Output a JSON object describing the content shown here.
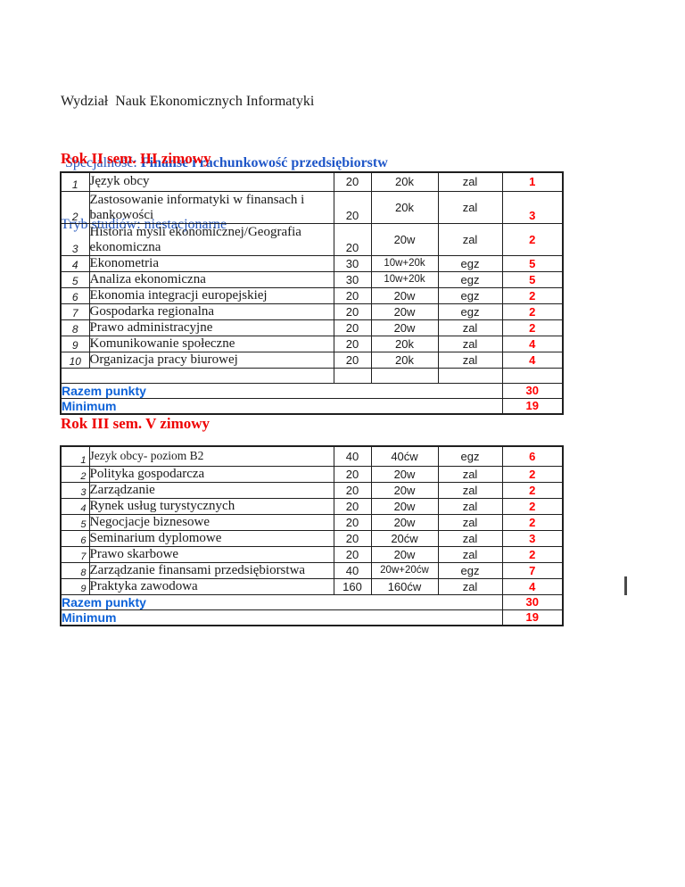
{
  "header": {
    "line1": "Wydział  Nauk Ekonomicznych Informatyki",
    "line2_label": "Specjalność: ",
    "line2_value": "Finanse i rachunkowość przedsiębiorstw",
    "line3": "Tryb studiów: niestacjonarne"
  },
  "colors": {
    "heading_red": "#ee0000",
    "points_red": "#ff0000",
    "serif_blue": "#2457bd",
    "summary_blue": "#0d62d8",
    "border_black": "#1f1f1f",
    "page_bg": "#ffffff"
  },
  "sections": [
    {
      "heading": "Rok II sem. III zimowy",
      "rows": [
        {
          "no": "1",
          "course": "Język obcy",
          "hours": "20",
          "type": "20k",
          "exam": "zal",
          "points": "1"
        },
        {
          "no": "2",
          "course": "Zastosowanie informatyki w  finansach i\nbankowości",
          "hours": "20",
          "type": "20k",
          "exam": "zal",
          "points": "3",
          "tall": true,
          "points_bottom": true
        },
        {
          "no": "3",
          "course": "Historia mysli ekonomicznej/Geografia\nekonomiczna",
          "hours": "20",
          "type": "20w",
          "exam": "zal",
          "points": "2",
          "tall": true
        },
        {
          "no": "4",
          "course": "Ekonometria",
          "hours": "30",
          "type": "10w+20k",
          "exam": "egz",
          "points": "5"
        },
        {
          "no": "5",
          "course": "Analiza ekonomiczna",
          "hours": "30",
          "type": "10w+20k",
          "exam": "egz",
          "points": "5"
        },
        {
          "no": "6",
          "course": "Ekonomia integracji europejskiej",
          "hours": "20",
          "type": "20w",
          "exam": "egz",
          "points": "2"
        },
        {
          "no": "7",
          "course": "Gospodarka regionalna",
          "hours": "20",
          "type": "20w",
          "exam": "egz",
          "points": "2"
        },
        {
          "no": "8",
          "course": "Prawo administracyjne",
          "hours": "20",
          "type": "20w",
          "exam": "zal",
          "points": "2"
        },
        {
          "no": "9",
          "course": "Komunikowanie społeczne",
          "hours": "20",
          "type": "20k",
          "exam": "zal",
          "points": "4"
        },
        {
          "no": "10",
          "course": "Organizacja pracy biurowej",
          "hours": "20",
          "type": "20k",
          "exam": "zal",
          "points": "4"
        },
        {
          "no": "",
          "course": "",
          "hours": "",
          "type": "",
          "exam": "",
          "points": "",
          "empty": true
        }
      ],
      "summary": [
        {
          "label": "Razem punkty",
          "value": "30"
        },
        {
          "label": "Minimum",
          "value": "19"
        }
      ]
    },
    {
      "heading": "Rok III sem. V zimowy",
      "rows": [
        {
          "no": "1",
          "course": "Jezyk obcy- poziom B2",
          "hours": "40",
          "type": "40ćw",
          "exam": "egz",
          "points": "6",
          "small": true
        },
        {
          "no": "2",
          "course": "Polityka gospodarcza",
          "hours": "20",
          "type": "20w",
          "exam": "zal",
          "points": "2"
        },
        {
          "no": "3",
          "course": "Zarządzanie",
          "hours": "20",
          "type": "20w",
          "exam": "zal",
          "points": "2"
        },
        {
          "no": "4",
          "course": "Rynek usług turystycznych",
          "hours": "20",
          "type": "20w",
          "exam": "zal",
          "points": "2"
        },
        {
          "no": "5",
          "course": "Negocjacje biznesowe",
          "hours": "20",
          "type": "20w",
          "exam": "zal",
          "points": "2"
        },
        {
          "no": "6",
          "course": "Seminarium dyplomowe",
          "hours": "20",
          "type": "20ćw",
          "exam": "zal",
          "points": "3"
        },
        {
          "no": "7",
          "course": "Prawo skarbowe",
          "hours": "20",
          "type": "20w",
          "exam": "zal",
          "points": "2"
        },
        {
          "no": "8",
          "course": "Zarządzanie finansami przedsiębiorstwa",
          "hours": "40",
          "type": "20w+20ćw",
          "exam": "egz",
          "points": "7"
        },
        {
          "no": "9",
          "course": "Praktyka zawodowa",
          "hours": "160",
          "type": "160ćw",
          "exam": "zal",
          "points": "4"
        }
      ],
      "summary": [
        {
          "label": "Razem punkty",
          "value": "30"
        },
        {
          "label": "Minimum",
          "value": "19"
        }
      ]
    }
  ],
  "marks": {
    "text_cursor": "|"
  }
}
